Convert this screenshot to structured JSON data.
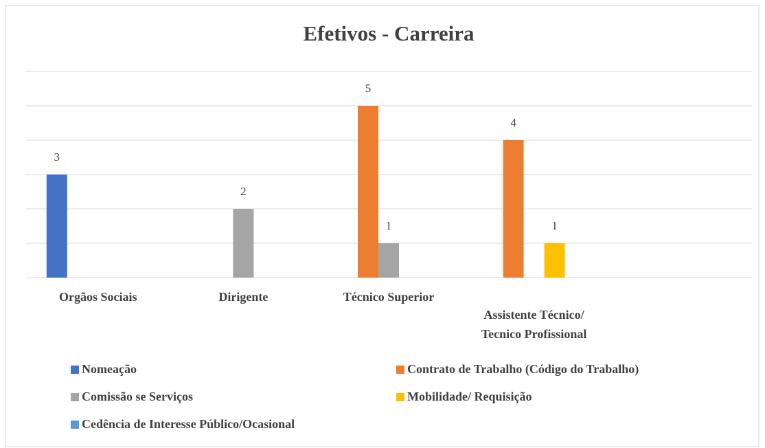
{
  "chart_data": {
    "type": "bar",
    "title": "Efetivos - Carreira",
    "categories": [
      "Orgãos Sociais",
      "Dirigente",
      "Técnico Superior",
      "Assistente Técnico/ Tecnico Profissional",
      null
    ],
    "series": [
      {
        "name": "Nomeação",
        "color": "#4472c4",
        "values": [
          3,
          null,
          null,
          null,
          null
        ]
      },
      {
        "name": "Contrato de Trabalho (Código do Trabalho)",
        "color": "#ed7d31",
        "values": [
          null,
          null,
          5,
          4,
          null
        ]
      },
      {
        "name": "Comissão se Serviços",
        "color": "#a5a5a5",
        "values": [
          null,
          2,
          1,
          null,
          null
        ]
      },
      {
        "name": "Mobilidade/ Requisição",
        "color": "#ffc000",
        "values": [
          null,
          null,
          null,
          1,
          null
        ]
      },
      {
        "name": "Cedência de Interesse Público/Ocasional",
        "color": "#5b9bd5",
        "values": [
          null,
          null,
          null,
          null,
          null
        ]
      }
    ],
    "ylim": [
      0,
      6
    ],
    "yticks": [
      0,
      1,
      2,
      3,
      4,
      5,
      6
    ],
    "grid": true,
    "legend": "bottom"
  }
}
